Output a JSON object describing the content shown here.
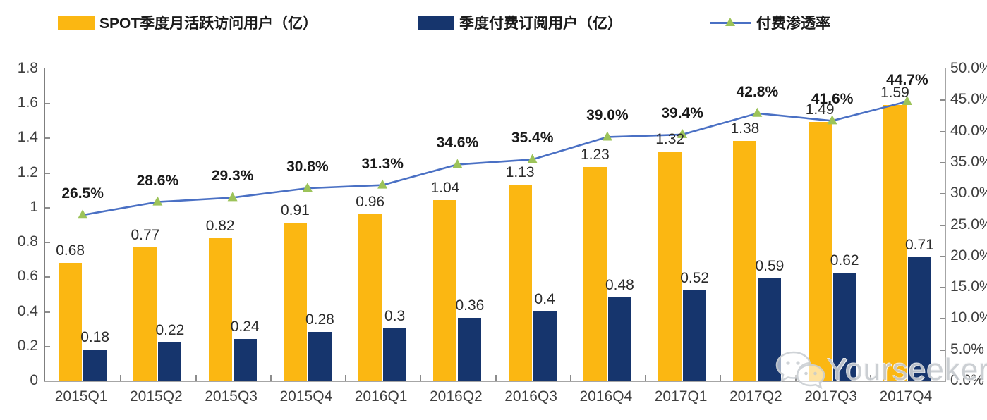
{
  "legend": {
    "items": [
      {
        "label": "SPOT季度月活跃访问用户（亿）",
        "type": "bar",
        "color": "#FBB712"
      },
      {
        "label": "季度付费订阅用户（亿）",
        "type": "bar",
        "color": "#16356D"
      },
      {
        "label": "付费渗透率",
        "type": "line",
        "color": "#4A70C4",
        "marker_color": "#9CC359"
      }
    ]
  },
  "watermark": {
    "text": "Yourseeker",
    "icon": "wechat-bubbles-icon",
    "color": "#c7cbd0"
  },
  "chart_data": {
    "type": "bar",
    "subtype": "grouped bars with overlaid line (dual axis)",
    "title": "",
    "categories": [
      "2015Q1",
      "2015Q2",
      "2015Q3",
      "2015Q4",
      "2016Q1",
      "2016Q2",
      "2016Q3",
      "2016Q4",
      "2017Q1",
      "2017Q2",
      "2017Q3",
      "2017Q4"
    ],
    "series": [
      {
        "name": "SPOT季度月活跃访问用户（亿）",
        "type": "bar",
        "color": "#FBB712",
        "axis": "left",
        "values": [
          0.68,
          0.77,
          0.82,
          0.91,
          0.96,
          1.04,
          1.13,
          1.23,
          1.32,
          1.38,
          1.49,
          1.59
        ],
        "labels": [
          "0.68",
          "0.77",
          "0.82",
          "0.91",
          "0.96",
          "1.04",
          "1.13",
          "1.23",
          "1.32",
          "1.38",
          "1.49",
          "1.59"
        ]
      },
      {
        "name": "季度付费订阅用户（亿）",
        "type": "bar",
        "color": "#16356D",
        "axis": "left",
        "values": [
          0.18,
          0.22,
          0.24,
          0.28,
          0.3,
          0.36,
          0.4,
          0.48,
          0.52,
          0.59,
          0.62,
          0.71
        ],
        "labels": [
          "0.18",
          "0.22",
          "0.24",
          "0.28",
          "0.3",
          "0.36",
          "0.4",
          "0.48",
          "0.52",
          "0.59",
          "0.62",
          "0.71"
        ]
      },
      {
        "name": "付费渗透率",
        "type": "line",
        "color": "#4A70C4",
        "marker": "triangle",
        "marker_color": "#9CC359",
        "axis": "right",
        "values": [
          26.5,
          28.6,
          29.3,
          30.8,
          31.3,
          34.6,
          35.4,
          39.0,
          39.4,
          42.8,
          41.6,
          44.7
        ],
        "labels": [
          "26.5%",
          "28.6%",
          "29.3%",
          "30.8%",
          "31.3%",
          "34.6%",
          "35.4%",
          "39.0%",
          "39.4%",
          "42.8%",
          "41.6%",
          "44.7%"
        ]
      }
    ],
    "left_axis": {
      "min": 0,
      "max": 1.8,
      "step": 0.2,
      "ticks": [
        "1.8",
        "1.6",
        "1.4",
        "1.2",
        "1",
        "0.8",
        "0.6",
        "0.4",
        "0.2",
        "0"
      ]
    },
    "right_axis": {
      "min": 0,
      "max": 50,
      "step": 5,
      "unit": "%",
      "ticks": [
        "50.0%",
        "45.0%",
        "40.0%",
        "35.0%",
        "30.0%",
        "25.0%",
        "20.0%",
        "15.0%",
        "10.0%",
        "5.0%",
        "0.0%"
      ]
    },
    "grid": false,
    "legend_position": "top"
  }
}
